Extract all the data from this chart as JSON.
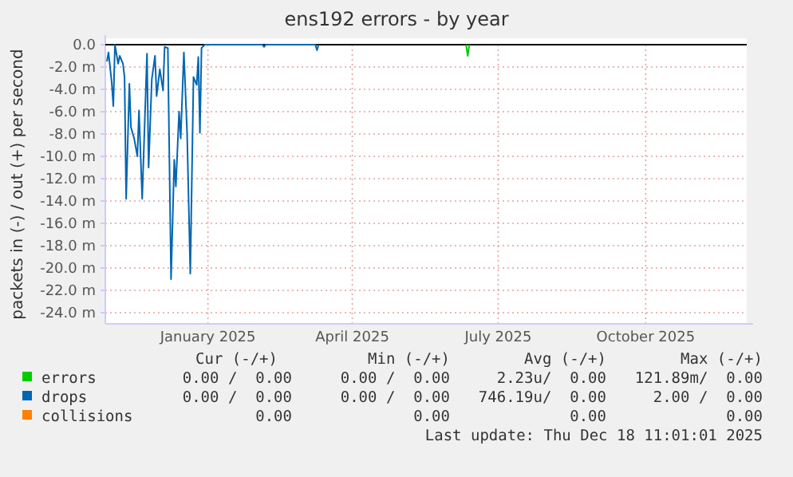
{
  "chart_data": {
    "type": "line",
    "title": "ens192 errors - by year",
    "ylabel": "packets in (-) / out (+) per second",
    "xlim": [
      "2024-11-13",
      "2025-12-18"
    ],
    "xticks": [
      {
        "value": "2025-01-16",
        "label": "January 2025"
      },
      {
        "value": "2025-04-16",
        "label": "April 2025"
      },
      {
        "value": "2025-07-16",
        "label": "July 2025"
      },
      {
        "value": "2025-10-16",
        "label": "October 2025"
      }
    ],
    "ylim": [
      -25,
      0
    ],
    "yticks": [
      {
        "value": 0,
        "label": "0.0"
      },
      {
        "value": -2,
        "label": "-2.0 m"
      },
      {
        "value": -4,
        "label": "-4.0 m"
      },
      {
        "value": -6,
        "label": "-6.0 m"
      },
      {
        "value": -8,
        "label": "-8.0 m"
      },
      {
        "value": -10,
        "label": "-10.0 m"
      },
      {
        "value": -12,
        "label": "-12.0 m"
      },
      {
        "value": -14,
        "label": "-14.0 m"
      },
      {
        "value": -16,
        "label": "-16.0 m"
      },
      {
        "value": -18,
        "label": "-18.0 m"
      },
      {
        "value": -20,
        "label": "-20.0 m"
      },
      {
        "value": -22,
        "label": "-22.0 m"
      },
      {
        "value": -24,
        "label": "-24.0 m"
      }
    ],
    "grid": true,
    "legend": "bottom",
    "series": [
      {
        "name": "errors",
        "color": "#00cc00",
        "x": [
          "2025-06-26",
          "2025-06-27",
          "2025-06-28"
        ],
        "values": [
          0,
          -1.0,
          0
        ]
      },
      {
        "name": "drops",
        "color": "#0066b3",
        "x": [
          "2024-11-14",
          "2024-11-15",
          "2024-11-17",
          "2024-11-18",
          "2024-11-19",
          "2024-11-21",
          "2024-11-22",
          "2024-11-24",
          "2024-11-25",
          "2024-11-26",
          "2024-11-28",
          "2024-11-29",
          "2024-12-01",
          "2024-12-03",
          "2024-12-04",
          "2024-12-06",
          "2024-12-09",
          "2024-12-10",
          "2024-12-12",
          "2024-12-14",
          "2024-12-15",
          "2024-12-17",
          "2024-12-19",
          "2024-12-20",
          "2024-12-22",
          "2024-12-24",
          "2024-12-26",
          "2024-12-27",
          "2024-12-29",
          "2024-12-30",
          "2025-01-01",
          "2025-01-03",
          "2025-01-05",
          "2025-01-07",
          "2025-01-09",
          "2025-01-10",
          "2025-01-11",
          "2025-01-12",
          "2025-01-14",
          "2025-02-19",
          "2025-02-20",
          "2025-02-21",
          "2025-03-24",
          "2025-03-25",
          "2025-03-26"
        ],
        "values": [
          -1.5,
          -0.7,
          -3.4,
          -5.5,
          0,
          -1.7,
          -1.0,
          -1.7,
          -2.9,
          -13.8,
          -3.5,
          -7.4,
          -8.4,
          -10.0,
          -5.9,
          -13.8,
          -0.8,
          -11.0,
          -3.1,
          -1.0,
          -4.6,
          -2.2,
          -4.1,
          -0.2,
          -0.3,
          -21.0,
          -10.3,
          -12.7,
          -6.0,
          -8.4,
          -0.7,
          -7.9,
          -20.5,
          -2.9,
          -3.6,
          -1.1,
          -7.9,
          -0.3,
          0,
          0,
          -0.2,
          0,
          0,
          -0.5,
          0
        ]
      },
      {
        "name": "collisions",
        "color": "#ff8000"
      }
    ],
    "annotations": [
      "Cur (-/+)",
      "Min (-/+)",
      "Avg (-/+)",
      "Max (-/+)",
      "0.00 /  0.00",
      "0.00 /  0.00",
      "2.23u/  0.00",
      "121.89m/  0.00",
      "0.00 /  0.00",
      "0.00 /  0.00",
      "746.19u/  0.00",
      "2.00 /  0.00",
      "0.00",
      "0.00",
      "0.00",
      "0.00",
      "Last update: Thu Dec 18 11:01:01 2025"
    ]
  }
}
